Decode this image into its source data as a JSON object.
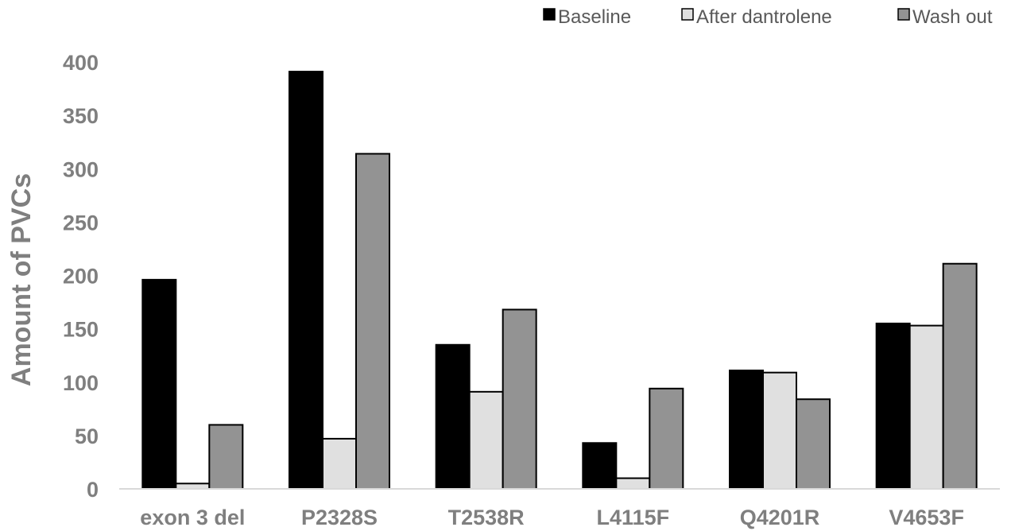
{
  "chart_data": {
    "type": "bar",
    "title": "",
    "xlabel": "",
    "ylabel": "Amount of PVCs",
    "ylim": [
      0,
      400
    ],
    "yticks": [
      0,
      50,
      100,
      150,
      200,
      250,
      300,
      350,
      400
    ],
    "grid": false,
    "legend_position": "top-right",
    "categories": [
      "exon 3 del",
      "P2328S",
      "T2538R",
      "L4115F",
      "Q4201R",
      "V4653F"
    ],
    "series": [
      {
        "name": "Baseline",
        "color": "#000000",
        "values": [
          196,
          391,
          135,
          43,
          111,
          155
        ]
      },
      {
        "name": "After dantrolene",
        "color": "#e0e0e0",
        "values": [
          5,
          47,
          91,
          10,
          109,
          153
        ]
      },
      {
        "name": "Wash out",
        "color": "#939393",
        "values": [
          60,
          314,
          168,
          94,
          84,
          211
        ]
      }
    ]
  }
}
